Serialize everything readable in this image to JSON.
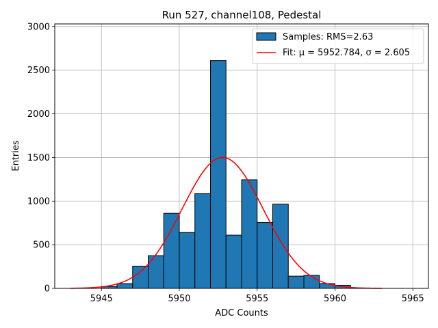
{
  "chart_data": {
    "type": "bar",
    "title": "Run 527, channel108, Pedestal",
    "xlabel": "ADC Counts",
    "ylabel": "Entries",
    "xlim": [
      5942,
      5966
    ],
    "ylim": [
      0,
      3030
    ],
    "xticks": [
      5945,
      5950,
      5955,
      5960,
      5965
    ],
    "yticks": [
      0,
      500,
      1000,
      1500,
      2000,
      2500,
      3000
    ],
    "grid": true,
    "legend_position": "top-right",
    "bin_width": 1,
    "series": [
      {
        "name": "Samples: RMS=2.63",
        "kind": "histogram",
        "color": "#1f77b4",
        "edgecolor": "#000000",
        "bins": [
          {
            "x": 5945,
            "value": 22
          },
          {
            "x": 5946,
            "value": 55
          },
          {
            "x": 5947,
            "value": 255
          },
          {
            "x": 5948,
            "value": 375
          },
          {
            "x": 5949,
            "value": 860
          },
          {
            "x": 5950,
            "value": 640
          },
          {
            "x": 5951,
            "value": 1085
          },
          {
            "x": 5952,
            "value": 2610
          },
          {
            "x": 5953,
            "value": 610
          },
          {
            "x": 5954,
            "value": 1245
          },
          {
            "x": 5955,
            "value": 755
          },
          {
            "x": 5956,
            "value": 965
          },
          {
            "x": 5957,
            "value": 140
          },
          {
            "x": 5958,
            "value": 150
          },
          {
            "x": 5959,
            "value": 55
          },
          {
            "x": 5960,
            "value": 35
          }
        ]
      },
      {
        "name": "Fit: μ = 5952.784, σ = 2.605",
        "kind": "gaussian-fit",
        "color": "#ff0000",
        "mu": 5952.784,
        "sigma": 2.605,
        "amplitude": 1500,
        "x_range": [
          5943,
          5963
        ]
      }
    ]
  }
}
